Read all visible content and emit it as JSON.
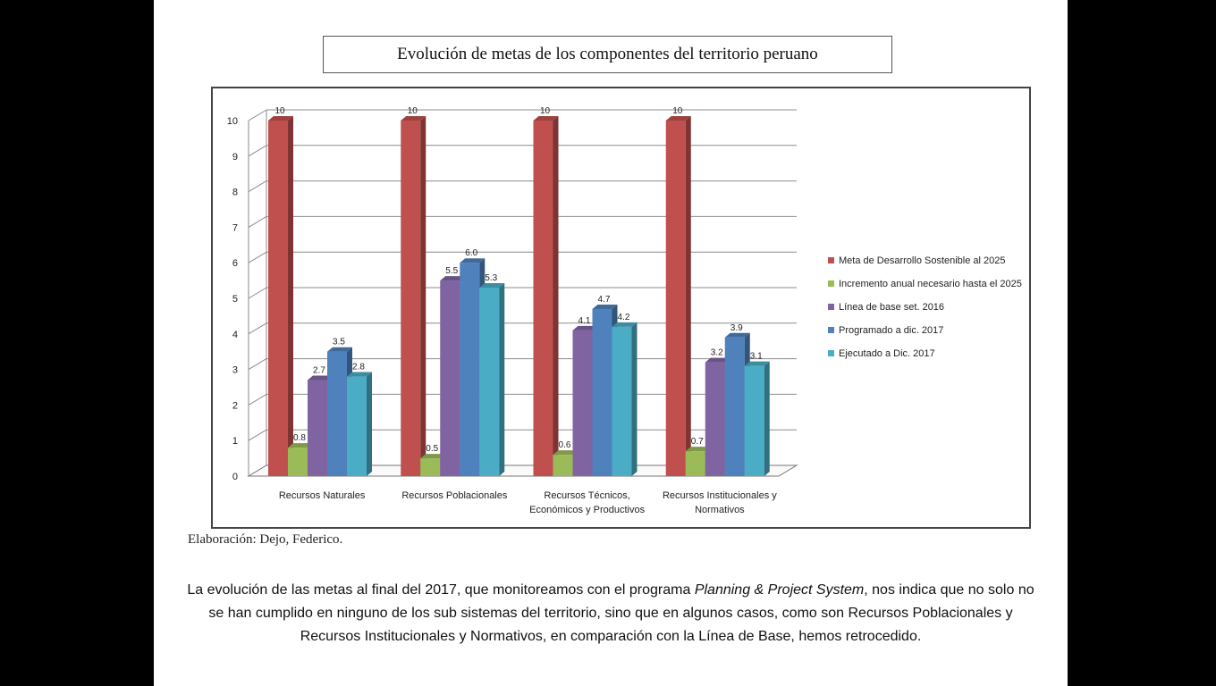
{
  "slide": {
    "title": "Evolución de metas de los componentes del territorio peruano",
    "credit": "Elaboración: Dejo, Federico.",
    "caption_part1": "La evolución de las metas al final del 2017, que monitoreamos con el programa ",
    "caption_italic": "Planning & Project System",
    "caption_part2": ", nos indica que no solo no se han cumplido en ninguno de los sub sistemas del territorio, sino que en algunos casos, como son Recursos Poblacionales y Recursos Institucionales y Normativos, en comparación con la Línea de Base, hemos retrocedido."
  },
  "chart_data": {
    "type": "bar",
    "title": "Evolución de metas de los componentes del territorio peruano",
    "xlabel": "",
    "ylabel": "",
    "ylim": [
      0,
      10
    ],
    "yticks": [
      0,
      1,
      2,
      3,
      4,
      5,
      6,
      7,
      8,
      9,
      10
    ],
    "grid": true,
    "legend_position": "right",
    "categories": [
      [
        "Recursos Naturales"
      ],
      [
        "Recursos Poblacionales"
      ],
      [
        "Recursos Técnicos,",
        "Económicos y Productivos"
      ],
      [
        "Recursos Institucionales y",
        "Normativos"
      ]
    ],
    "series": [
      {
        "name": "Meta de Desarrollo Sostenible al 2025",
        "color": "#c0504d",
        "values": [
          10,
          10,
          10,
          10
        ],
        "labels": [
          "10",
          "10",
          "10",
          "10"
        ]
      },
      {
        "name": "Incremento anual necesario hasta el 2025",
        "color": "#9bbb59",
        "values": [
          0.8,
          0.5,
          0.6,
          0.7
        ],
        "labels": [
          "0.8",
          "0.5",
          "0.6",
          "0.7"
        ]
      },
      {
        "name": "Línea de base  set. 2016",
        "color": "#8064a2",
        "values": [
          2.7,
          5.5,
          4.1,
          3.2
        ],
        "labels": [
          "2.7",
          "5.5",
          "4.1",
          "3.2"
        ]
      },
      {
        "name": "Programado a dic.  2017",
        "color": "#4f81bd",
        "values": [
          3.5,
          6.0,
          4.7,
          3.9
        ],
        "labels": [
          "3.5",
          "6.0",
          "4.7",
          "3.9"
        ]
      },
      {
        "name": "Ejecutado a Dic. 2017",
        "color": "#4bacc6",
        "values": [
          2.8,
          5.3,
          4.2,
          3.1
        ],
        "labels": [
          "2.8",
          "5.3",
          "4.2",
          "3.1"
        ]
      }
    ]
  }
}
